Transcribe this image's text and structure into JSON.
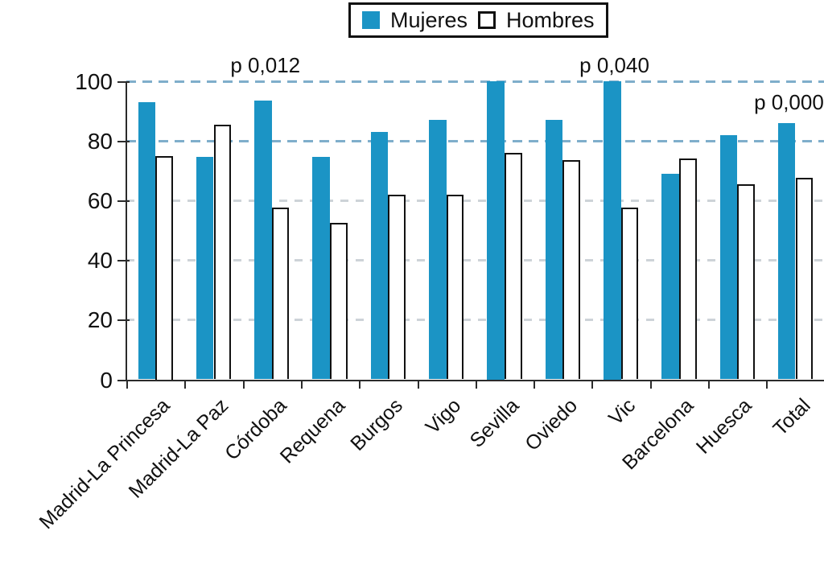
{
  "legend": {
    "items": [
      {
        "label": "Mujeres",
        "swatch_color": "#1B94C5"
      },
      {
        "label": "Hombres",
        "swatch_color": "#FFFFFF"
      }
    ]
  },
  "colors": {
    "mujeres_bar": "#1B94C5",
    "hombres_bar": "#FFFFFF",
    "bar_outline": "#111111",
    "grid_major_dash": "#7FAECB",
    "grid_minor_dash": "#CDD3D8",
    "axis": "#2B2B2B"
  },
  "chart_data": {
    "type": "bar",
    "title": "",
    "xlabel": "",
    "ylabel": "",
    "categories": [
      "Madrid-La Princesa",
      "Madrid-La Paz",
      "Córdoba",
      "Requena",
      "Burgos",
      "Vigo",
      "Sevilla",
      "Oviedo",
      "Vic",
      "Barcelona",
      "Huesca",
      "Total"
    ],
    "series": [
      {
        "name": "Mujeres",
        "color": "#1B94C5",
        "values": [
          93,
          74.5,
          93.5,
          74.5,
          83,
          87,
          100,
          87,
          100,
          69,
          82,
          86
        ]
      },
      {
        "name": "Hombres",
        "color": "#FFFFFF",
        "values": [
          75,
          85.5,
          57.5,
          52.5,
          62,
          62,
          76,
          73.5,
          57.5,
          74,
          65.5,
          67.5
        ]
      }
    ],
    "ylim": [
      0,
      100
    ],
    "yticks": [
      0,
      20,
      40,
      60,
      80,
      100
    ],
    "grid": "horizontal dashed",
    "legend_position": "top-center",
    "annotations": [
      {
        "text": "p 0,012",
        "category": "Córdoba",
        "placement": "high"
      },
      {
        "text": "p 0,040",
        "category": "Vic",
        "placement": "high"
      },
      {
        "text": "p 0,000",
        "category": "Total",
        "placement": "low"
      }
    ]
  }
}
